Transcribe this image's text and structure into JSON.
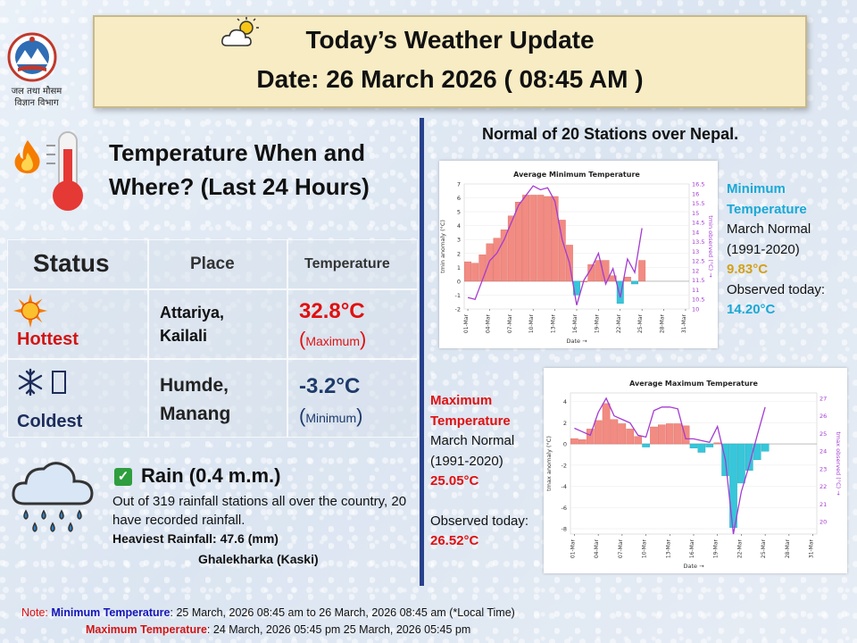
{
  "header": {
    "title": "Today’s Weather Update",
    "date_line": "Date: 26 March 2026  ( 08:45 AM )",
    "department": "जल तथा मौसम\nविज्ञान विभाग"
  },
  "temperature_section": {
    "heading": "Temperature When and Where?  (Last 24 Hours)",
    "table": {
      "headers": [
        "Status",
        "Place",
        "Temperature"
      ],
      "rows": [
        {
          "status": "Hottest",
          "place_line1": "Attariya,",
          "place_line2": "Kailali",
          "value": "32.8°C",
          "note_open": "(",
          "note": "Maximum",
          "note_close": ")"
        },
        {
          "status": "Coldest",
          "place_line1": "Humde,",
          "place_line2": "Manang",
          "value": "-3.2°C",
          "note_open": "(",
          "note": "Minimum",
          "note_close": ")"
        }
      ]
    }
  },
  "rain": {
    "title": "Rain  (0.4 m.m.)",
    "description": "Out of 319 rainfall stations all over the country, 20 have recorded rainfall.",
    "heaviest": "Heaviest Rainfall: 47.6 (mm)",
    "heaviest_place": "Ghalekharka (Kaski)"
  },
  "normals": {
    "heading": "Normal of 20 Stations over Nepal.",
    "min_info": {
      "title_line1": "Minimum",
      "title_line2": "Temperature",
      "normal_label": "March Normal",
      "period": "(1991-2020)",
      "normal_value": "9.83°C",
      "observed_label": "Observed today:",
      "observed_value": "14.20°C"
    },
    "max_info": {
      "title_line1": "Maximum",
      "title_line2": "Temperature",
      "normal_label": "March Normal",
      "period": "(1991-2020)",
      "normal_value": "25.05°C",
      "observed_label": "Observed today:",
      "observed_value": "26.52°C"
    }
  },
  "footer": {
    "note_label": "Note:",
    "min_label": "Minimum Temperature",
    "min_text": ": 25 March, 2026  08:45 am  to 26 March, 2026  08:45 am (*Local Time)",
    "max_label": "Maximum Temperature",
    "max_text": ":  24 March, 2026  05:45 pm  25 March, 2026  05:45 pm"
  },
  "colors": {
    "positive_bar": "#f28b82",
    "negative_bar": "#37c6da",
    "observed_line": "#a43bd1",
    "divider": "#27408b",
    "hot": "#e01010",
    "cold": "#1d3a6a"
  },
  "icons": [
    "cloud-sun-icon",
    "fire-icon",
    "thermometer-icon",
    "sun-icon",
    "snowflake-icon",
    "check-icon",
    "rain-cloud-icon",
    "emblem-icon"
  ],
  "chart_data": [
    {
      "type": "bar",
      "title": "Average Minimum Temperature",
      "xlabel": "Date →",
      "ylabel_left": "tmin anomaly (°C)",
      "ylabel_right": "tmin observed (°C) →",
      "ylim": [
        -2,
        7
      ],
      "ylim_right": [
        10,
        16.5
      ],
      "x_ticks": [
        "01-Mar",
        "04-Mar",
        "07-Mar",
        "10-Mar",
        "13-Mar",
        "16-Mar",
        "19-Mar",
        "22-Mar",
        "25-Mar",
        "28-Mar",
        "31-Mar"
      ],
      "y_ticks": [
        -2,
        -1,
        0,
        1,
        2,
        3,
        4,
        5,
        6,
        7
      ],
      "y_ticks_right": [
        10,
        10.5,
        11,
        11.5,
        12,
        12.5,
        13,
        13.5,
        14,
        14.5,
        15,
        15.5,
        16,
        16.5
      ],
      "days": [
        1,
        2,
        3,
        4,
        5,
        6,
        7,
        8,
        9,
        10,
        11,
        12,
        13,
        14,
        15,
        16,
        17,
        18,
        19,
        20,
        21,
        22,
        23,
        24,
        25
      ],
      "anomaly": [
        1.4,
        1.3,
        1.9,
        2.7,
        3.1,
        3.7,
        4.7,
        5.7,
        6.2,
        6.2,
        6.2,
        6.1,
        6.1,
        4.4,
        2.6,
        -1.0,
        0,
        1.2,
        1.5,
        1.5,
        0.4,
        -1.6,
        0.3,
        -0.2,
        1.5
      ],
      "observed": [
        10.6,
        10.5,
        11.5,
        12.5,
        12.9,
        13.6,
        14.5,
        15.4,
        15.9,
        16.4,
        16.2,
        16.3,
        15.6,
        13.6,
        12.4,
        10.2,
        11.5,
        12.1,
        12.9,
        11.3,
        12.1,
        10.6,
        12.6,
        11.9,
        14.2
      ]
    },
    {
      "type": "bar",
      "title": "Average Maximum Temperature",
      "xlabel": "Date →",
      "ylabel_left": "tmax anomaly (°C)",
      "ylabel_right": "tmax observed (°C) →",
      "ylim": [
        -8.5,
        4.8
      ],
      "ylim_right": [
        19.3,
        27.3
      ],
      "x_ticks": [
        "01-Mar",
        "04-Mar",
        "07-Mar",
        "10-Mar",
        "13-Mar",
        "16-Mar",
        "19-Mar",
        "22-Mar",
        "25-Mar",
        "28-Mar",
        "31-Mar"
      ],
      "y_ticks": [
        -8,
        -6,
        -4,
        -2,
        0,
        2,
        4
      ],
      "y_ticks_right": [
        20,
        21,
        22,
        23,
        24,
        25,
        26,
        27
      ],
      "days": [
        1,
        2,
        3,
        4,
        5,
        6,
        7,
        8,
        9,
        10,
        11,
        12,
        13,
        14,
        15,
        16,
        17,
        18,
        19,
        20,
        21,
        22,
        23,
        24,
        25
      ],
      "anomaly": [
        0.5,
        0.4,
        1.4,
        2.2,
        3.8,
        2.3,
        1.9,
        1.4,
        0.7,
        -0.3,
        1.6,
        1.8,
        1.9,
        1.9,
        1.7,
        -0.4,
        -0.8,
        -0.3,
        0.1,
        -3.0,
        -7.9,
        -3.7,
        -2.5,
        -1.5,
        -0.7
      ],
      "observed": [
        25.3,
        25.1,
        24.9,
        26.2,
        27.0,
        26.0,
        25.8,
        25.6,
        24.9,
        24.8,
        26.3,
        26.5,
        26.5,
        26.4,
        24.7,
        24.7,
        24.6,
        24.5,
        25.4,
        23.5,
        19.3,
        21.7,
        23.2,
        24.9,
        26.5
      ]
    }
  ]
}
